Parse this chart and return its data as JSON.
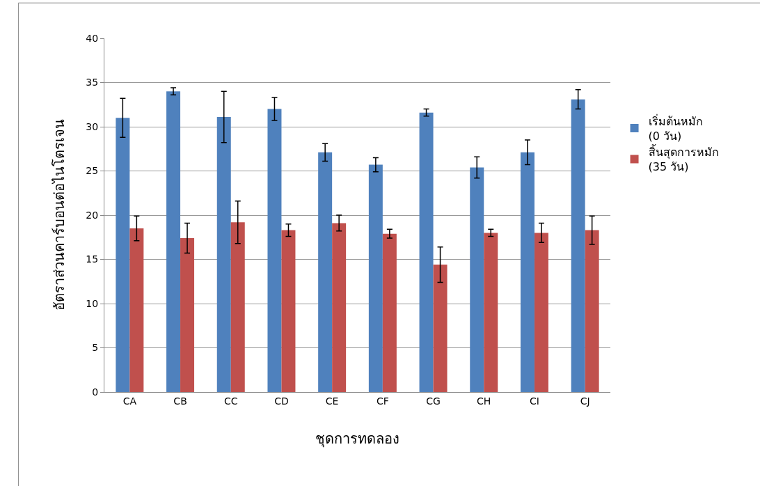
{
  "chart_data": {
    "type": "bar",
    "xlabel": "ชุดการทดลอง",
    "ylabel": "อัตราส่วนคาร์บอนต่อไนโตรเจน",
    "categories": [
      "CA",
      "CB",
      "CC",
      "CD",
      "CE",
      "CF",
      "CG",
      "CH",
      "CI",
      "CJ"
    ],
    "series": [
      {
        "name": "เริ่มต้นหมัก\n(0 วัน)",
        "color": "#4f81bd",
        "values": [
          31.0,
          34.0,
          31.1,
          32.0,
          27.1,
          25.7,
          31.6,
          25.4,
          27.1,
          33.1
        ],
        "errors": [
          2.2,
          0.4,
          2.9,
          1.3,
          1.0,
          0.8,
          0.4,
          1.2,
          1.4,
          1.1
        ]
      },
      {
        "name": "สิ้นสุดการหมัก\n(35 วัน)",
        "color": "#c0504d",
        "values": [
          18.5,
          17.4,
          19.2,
          18.3,
          19.1,
          17.9,
          14.4,
          18.0,
          18.0,
          18.3
        ],
        "errors": [
          1.4,
          1.7,
          2.4,
          0.7,
          0.9,
          0.5,
          2.0,
          0.4,
          1.1,
          1.6
        ]
      }
    ],
    "ylim": [
      0,
      40
    ],
    "yticks": [
      0,
      5,
      10,
      15,
      20,
      25,
      30,
      35,
      40
    ],
    "grid": "y",
    "legend": "right"
  }
}
